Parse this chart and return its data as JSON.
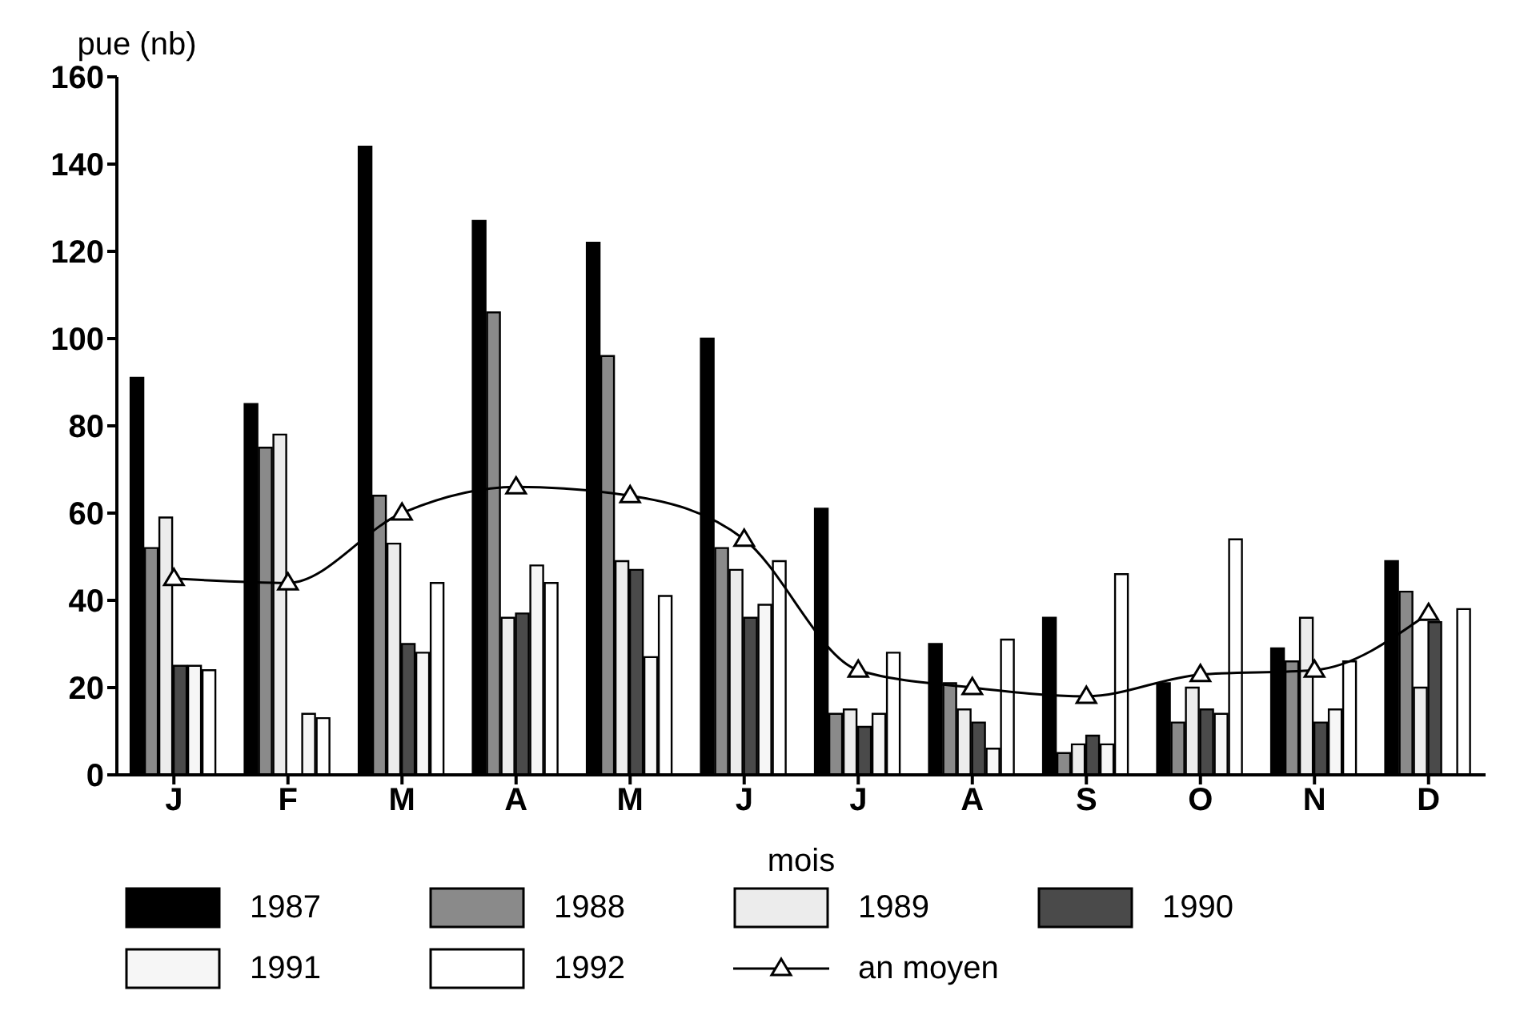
{
  "chart_data": {
    "type": "bar",
    "xlabel": "mois",
    "ylabel": "pue (nb)",
    "categories": [
      "J",
      "F",
      "M",
      "A",
      "M",
      "J",
      "J",
      "A",
      "S",
      "O",
      "N",
      "D"
    ],
    "ylim": [
      0,
      160
    ],
    "yticks": [
      0,
      20,
      40,
      60,
      80,
      100,
      120,
      140,
      160
    ],
    "legend": "bottom",
    "marker": "triangle",
    "series": [
      {
        "name": "1987",
        "color": "#000000",
        "values": [
          91,
          85,
          144,
          127,
          122,
          100,
          61,
          30,
          36,
          21,
          29,
          49
        ]
      },
      {
        "name": "1988",
        "color": "#8a8a8a",
        "values": [
          52,
          75,
          64,
          106,
          96,
          52,
          14,
          21,
          5,
          12,
          26,
          42
        ]
      },
      {
        "name": "1989",
        "color": "#ececec",
        "values": [
          59,
          78,
          53,
          36,
          49,
          47,
          15,
          15,
          7,
          20,
          36,
          20
        ]
      },
      {
        "name": "1990",
        "color": "#4a4a4a",
        "values": [
          25,
          null,
          30,
          37,
          47,
          36,
          11,
          12,
          9,
          15,
          12,
          35
        ]
      },
      {
        "name": "1991",
        "color": "#f6f6f6",
        "values": [
          25,
          14,
          28,
          48,
          27,
          39,
          14,
          6,
          7,
          14,
          15,
          null
        ]
      },
      {
        "name": "1992",
        "color": "#ffffff",
        "values": [
          24,
          13,
          44,
          44,
          41,
          49,
          28,
          31,
          46,
          54,
          26,
          38
        ]
      },
      {
        "name": "an moyen",
        "type": "line",
        "color": "#000000",
        "values": [
          45,
          44,
          60,
          66,
          64,
          54,
          24,
          20,
          18,
          23,
          24,
          37
        ]
      }
    ]
  }
}
